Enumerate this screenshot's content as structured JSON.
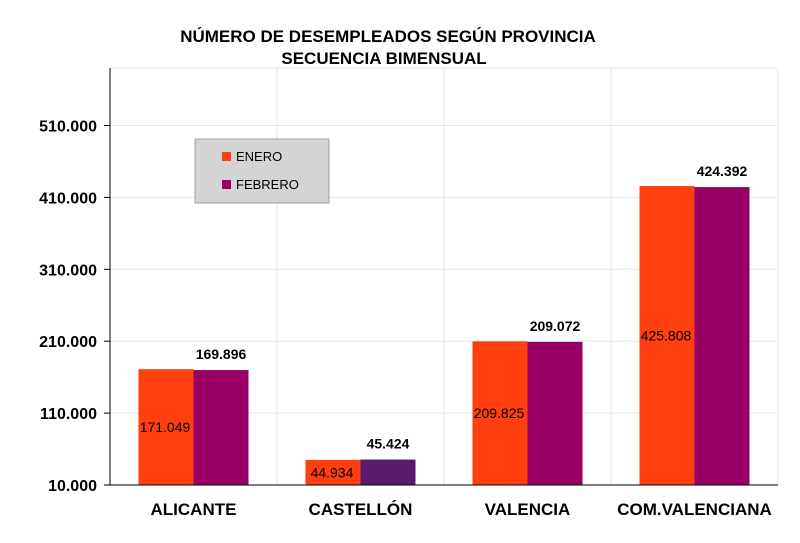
{
  "chart_data": {
    "type": "bar",
    "title": "NÚMERO DE DESEMPLEADOS SEGÚN PROVINCIA",
    "subtitle": "SECUENCIA BIMENSUAL",
    "categories": [
      "ALICANTE",
      "CASTELLÓN",
      "VALENCIA",
      "COM.VALENCIANA"
    ],
    "series": [
      {
        "name": "ENERO",
        "values": [
          171049,
          44934,
          209825,
          425808
        ],
        "labels": [
          "171.049",
          "44.934",
          "209.825",
          "425.808"
        ],
        "color": "#ff3f0f"
      },
      {
        "name": "FEBRERO",
        "values": [
          169896,
          45424,
          209072,
          424392
        ],
        "labels": [
          "169.896",
          "45.424",
          "209.072",
          "424.392"
        ],
        "color": "#990066"
      }
    ],
    "febrero_castellon_color": "#5a1a6e",
    "yticks": [
      10000,
      110000,
      210000,
      310000,
      410000,
      510000
    ],
    "ytick_labels": [
      "10.000",
      "110.000",
      "210.000",
      "310.000",
      "410.000",
      "510.000"
    ],
    "ylim": [
      10000,
      590000
    ],
    "grid": true,
    "legend_position": "top-left"
  }
}
